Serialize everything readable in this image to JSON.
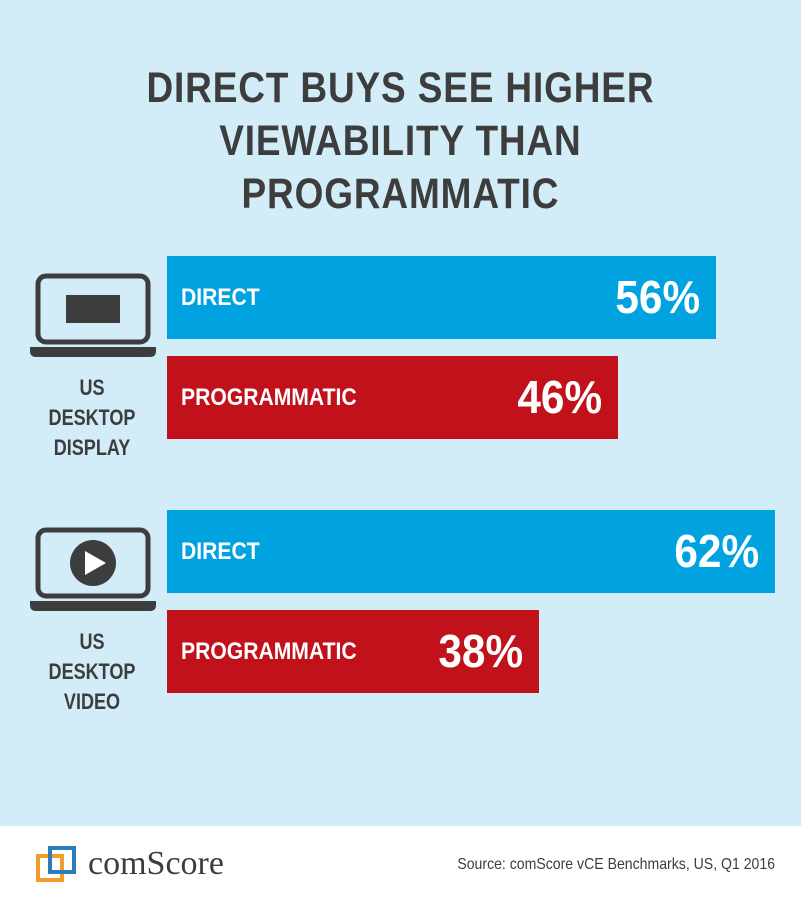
{
  "colors": {
    "background": "#d2edf8",
    "direct": "#00a3e0",
    "programmatic": "#c1121c",
    "text": "#3d3d3d",
    "logo_orange": "#f39c2a",
    "logo_blue": "#2a7db8"
  },
  "chart_data": {
    "type": "bar",
    "orientation": "horizontal",
    "title": [
      "DIRECT BUYS SEE HIGHER",
      "VIEWABILITY THAN PROGRAMMATIC"
    ],
    "xlim": [
      0,
      100
    ],
    "groups": [
      {
        "label": [
          "US DESKTOP",
          "DISPLAY"
        ],
        "icon": "laptop-display-icon",
        "bars": [
          {
            "name": "DIRECT",
            "value": 56,
            "label": "56%",
            "color": "#00a3e0"
          },
          {
            "name": "PROGRAMMATIC",
            "value": 46,
            "label": "46%",
            "color": "#c1121c"
          }
        ]
      },
      {
        "label": [
          "US DESKTOP",
          "VIDEO"
        ],
        "icon": "laptop-video-icon",
        "bars": [
          {
            "name": "DIRECT",
            "value": 62,
            "label": "62%",
            "color": "#00a3e0"
          },
          {
            "name": "PROGRAMMATIC",
            "value": 38,
            "label": "38%",
            "color": "#c1121c"
          }
        ]
      }
    ]
  },
  "footer": {
    "logo_text": "comScore",
    "logo_icon": "comscore-logo-icon",
    "source": "Source: comScore vCE Benchmarks, US, Q1 2016"
  }
}
